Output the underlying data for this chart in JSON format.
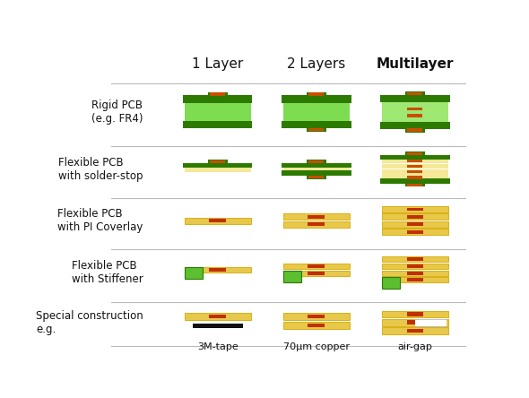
{
  "col_headers": [
    "1 Layer",
    "2 Layers",
    "Multilayer"
  ],
  "row_labels": [
    "Rigid PCB\n(e.g. FR4)",
    "Flexible PCB\nwith solder-stop",
    "Flexible PCB\nwith PI Coverlay",
    "Flexible PCB\nwith Stiffener",
    "Special construction\ne.g."
  ],
  "col_subtitles": [
    "3M-tape",
    "70µm copper",
    "air-gap"
  ],
  "colors": {
    "dark_green": "#2d7a00",
    "mid_green": "#5bbf30",
    "light_green": "#7ddc50",
    "lighter_green": "#a0e870",
    "yellow_dark": "#d4a800",
    "yellow": "#e8c84a",
    "yellow_light": "#f5e898",
    "orange": "#c85000",
    "red_orange": "#c03000",
    "white": "#ffffff",
    "black": "#111111",
    "sep_color": "#bbbbbb",
    "dot_line": "#90e890"
  }
}
